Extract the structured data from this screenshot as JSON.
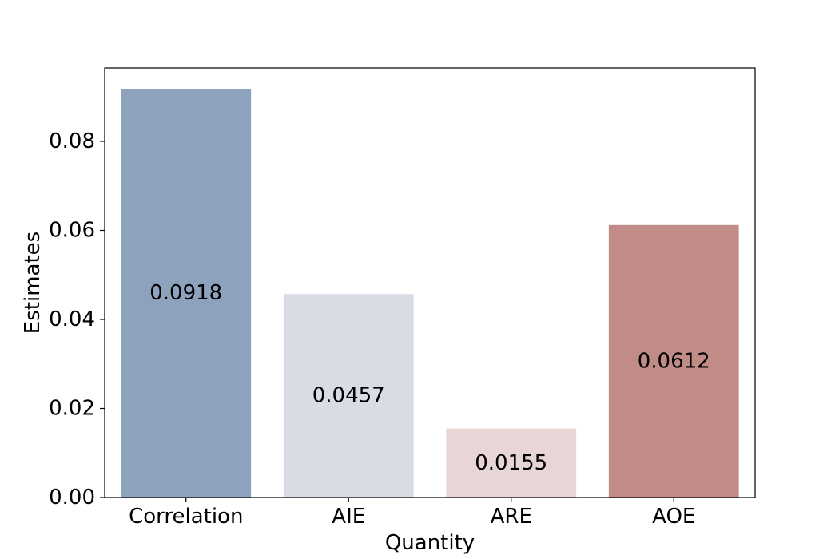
{
  "chart_data": {
    "type": "bar",
    "title": "",
    "xlabel": "Quantity",
    "ylabel": "Estimates",
    "categories": [
      "Correlation",
      "AIE",
      "ARE",
      "AOE"
    ],
    "values": [
      0.0918,
      0.0457,
      0.0155,
      0.0612
    ],
    "value_labels": [
      "0.0918",
      "0.0457",
      "0.0155",
      "0.0612"
    ],
    "colors": [
      "#8da2bd",
      "#d9dce4",
      "#e8d5d5",
      "#c18b88"
    ],
    "ylim": [
      0,
      0.0965
    ],
    "yticks": [
      0,
      0.02,
      0.04,
      0.06,
      0.08
    ],
    "ytick_labels": [
      "0.00",
      "0.02",
      "0.04",
      "0.06",
      "0.08"
    ],
    "grid": false,
    "legend": "none"
  }
}
